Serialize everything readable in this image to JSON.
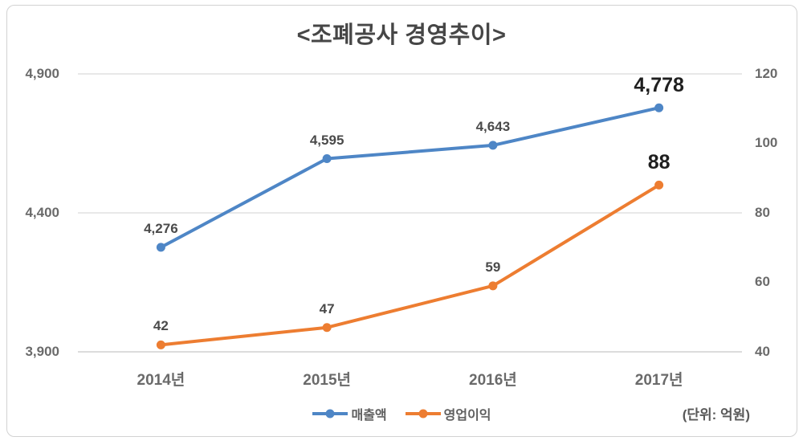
{
  "chart_data": {
    "type": "line",
    "title": "<조폐공사 경영추이>",
    "unit_note": "(단위: 억원)",
    "categories": [
      "2014년",
      "2015년",
      "2016년",
      "2017년"
    ],
    "series": [
      {
        "name": "매출액",
        "axis": "left",
        "color": "#4e86c6",
        "values": [
          4276,
          4595,
          4643,
          4778
        ],
        "labels": [
          "4,276",
          "4,595",
          "4,643",
          "4,778"
        ]
      },
      {
        "name": "영업이익",
        "axis": "right",
        "color": "#ed7d31",
        "values": [
          42,
          47,
          59,
          88
        ],
        "labels": [
          "42",
          "47",
          "59",
          "88"
        ]
      }
    ],
    "left_axis": {
      "min": 3900,
      "max": 4900,
      "ticks": [
        "4,900",
        "4,400",
        "3,900"
      ],
      "tick_values": [
        4900,
        4400,
        3900
      ]
    },
    "right_axis": {
      "min": 40,
      "max": 120,
      "ticks": [
        "120",
        "100",
        "80",
        "60",
        "40"
      ],
      "tick_values": [
        120,
        100,
        80,
        60,
        40
      ]
    },
    "grid": true,
    "gridlines_at_left_ticks_only": true,
    "emphasize_last_point_labels": true,
    "legend_position": "bottom"
  }
}
